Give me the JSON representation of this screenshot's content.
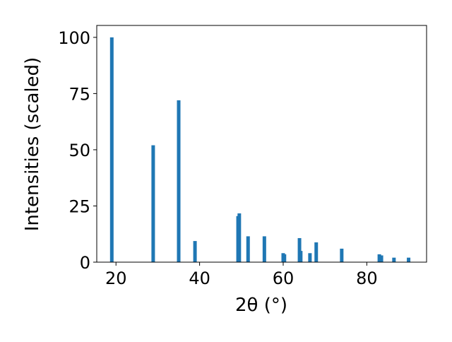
{
  "chart_data": {
    "type": "bar",
    "x_label": "2θ (°)",
    "y_label": "Intensities (scaled)",
    "x": [
      19.0,
      28.9,
      35.0,
      38.9,
      49.2,
      49.5,
      51.6,
      55.5,
      60.0,
      60.3,
      63.9,
      64.2,
      66.4,
      67.9,
      74.0,
      83.0,
      83.5,
      86.5,
      90.0
    ],
    "values": [
      100,
      52,
      72,
      9.4,
      20.5,
      21.7,
      11.5,
      11.5,
      4,
      3.5,
      10.7,
      5,
      4,
      8.8,
      6,
      3.5,
      3,
      2,
      2
    ],
    "color": "#1f77b4",
    "xlim": [
      15.4,
      94.3
    ],
    "ylim": [
      0,
      105.3
    ],
    "xticks": [
      20,
      40,
      60,
      80
    ],
    "yticks": [
      0,
      25,
      50,
      75,
      100
    ]
  }
}
